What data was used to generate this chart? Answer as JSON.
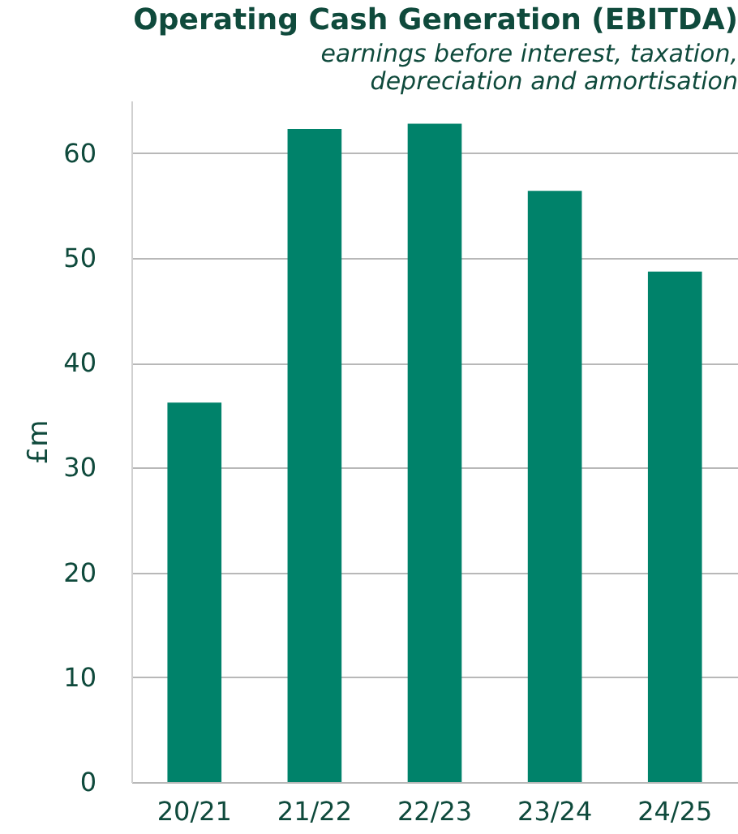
{
  "chart_data": {
    "type": "bar",
    "title": "Operating Cash Generation (EBITDA)",
    "subtitle": [
      "earnings before interest, taxation,",
      "depreciation and amortisation"
    ],
    "ylabel": "£m",
    "categories": [
      "20/21",
      "21/22",
      "22/23",
      "23/24",
      "24/25"
    ],
    "values": [
      36.2,
      62.3,
      62.8,
      56.4,
      48.7
    ],
    "color": "#00826a",
    "ylim": [
      0,
      65
    ],
    "yticks": [
      0,
      10,
      20,
      30,
      40,
      50,
      60
    ],
    "grid": "y"
  }
}
